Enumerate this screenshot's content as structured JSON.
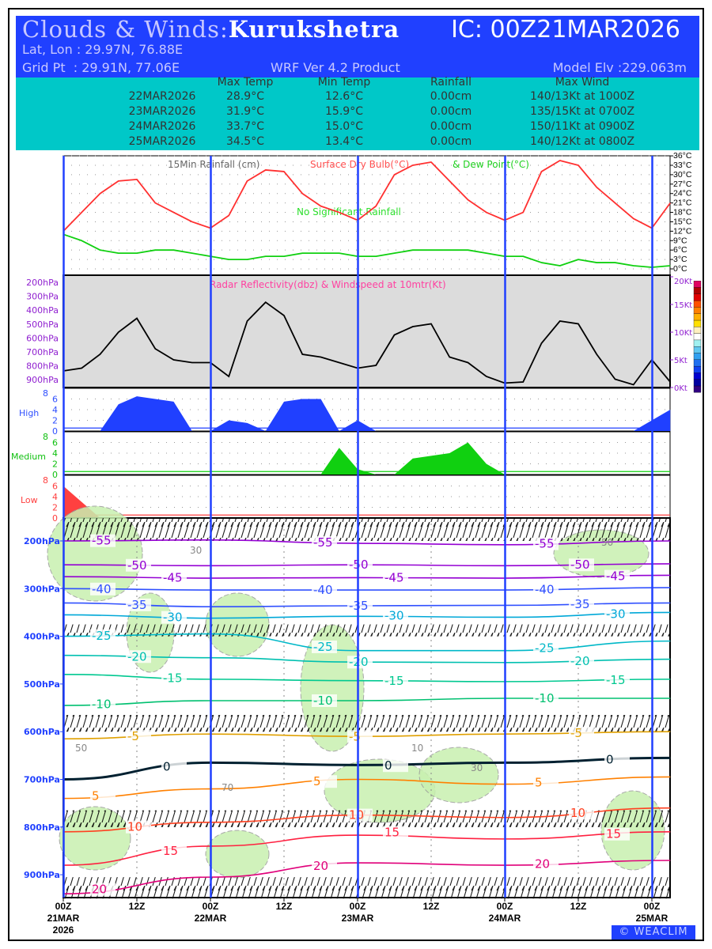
{
  "header": {
    "title_prefix": "Clouds & Winds:",
    "location": "Kurukshetra",
    "ic": "IC: 00Z21MAR2026",
    "latlon": "Lat, Lon : 29.97N, 76.88E",
    "gridpt": "Grid Pt  : 29.91N, 77.06E",
    "model": "WRF Ver 4.2 Product",
    "elev": "Model Elv :229.063m"
  },
  "table": {
    "headers": [
      "Max Temp",
      "Min Temp",
      "Rainfall",
      "Max Wind"
    ],
    "rows": [
      [
        "22MAR2026",
        "28.9°C",
        "12.6°C",
        "0.00cm",
        "140/13Kt at 1000Z"
      ],
      [
        "23MAR2026",
        "31.9°C",
        "15.9°C",
        "0.00cm",
        "135/15Kt at 0700Z"
      ],
      [
        "24MAR2026",
        "33.7°C",
        "15.0°C",
        "0.00cm",
        "150/11Kt at 0900Z"
      ],
      [
        "25MAR2026",
        "34.5°C",
        "13.4°C",
        "0.00cm",
        "140/12Kt at 0800Z"
      ]
    ]
  },
  "logo": "© WEACLIM",
  "chart_data": [
    {
      "type": "line",
      "name": "surface",
      "legend": [
        "15Min Rainfall (cm)",
        "Surface Dry Bulb(°C)",
        "& Dew Point(°C)"
      ],
      "annotation": "No Significant Rainfall",
      "x_hours": [
        0,
        3,
        6,
        9,
        12,
        15,
        18,
        21,
        24,
        27,
        30,
        33,
        36,
        39,
        42,
        45,
        48,
        51,
        54,
        57,
        60,
        63,
        66,
        69,
        72,
        75,
        78,
        81,
        84,
        87,
        90,
        93,
        96,
        99
      ],
      "series": [
        {
          "name": "Surface Dry Bulb",
          "color": "#ff3030",
          "values": [
            12,
            18,
            24,
            28,
            28.5,
            21,
            18,
            15,
            13,
            17,
            28,
            31.5,
            31,
            24,
            20,
            18,
            15.5,
            20,
            30,
            33,
            34,
            28,
            22,
            18,
            15.5,
            18,
            31,
            34.5,
            33,
            26,
            21,
            16,
            13,
            21
          ]
        },
        {
          "name": "Dew Point",
          "color": "#10d010",
          "values": [
            11,
            9,
            6,
            5,
            5,
            6,
            6,
            5,
            4,
            3,
            3,
            4,
            4,
            5,
            5,
            5,
            4,
            4,
            5,
            6,
            6,
            6,
            6,
            5,
            4,
            4,
            2,
            1,
            3,
            2,
            2,
            1,
            0.5,
            1
          ]
        }
      ],
      "yticks": [
        "0°C",
        "3°C",
        "6°C",
        "9°C",
        "12°C",
        "15°C",
        "18°C",
        "21°C",
        "24°C",
        "27°C",
        "30°C",
        "33°C",
        "36°C"
      ],
      "ylim": [
        0,
        36
      ]
    },
    {
      "type": "line",
      "name": "windspeed",
      "title": "Radar Reflectivity(dbz) & Windspeed at 10mtr(Kt)",
      "x_hours": [
        0,
        3,
        6,
        9,
        12,
        15,
        18,
        21,
        24,
        27,
        30,
        33,
        36,
        39,
        42,
        45,
        48,
        51,
        54,
        57,
        60,
        63,
        66,
        69,
        72,
        75,
        78,
        81,
        84,
        87,
        90,
        93,
        96,
        99
      ],
      "values": [
        3,
        3.5,
        6,
        10,
        12.5,
        7,
        5,
        4.5,
        4.5,
        2,
        12,
        15.4,
        13,
        6,
        5.5,
        4.5,
        3.5,
        4,
        9.5,
        11,
        11.5,
        5.5,
        4.5,
        2,
        0.8,
        1,
        8,
        12,
        11.5,
        6,
        1.5,
        0.5,
        5,
        1
      ],
      "yticks": [
        "0Kt",
        "5Kt",
        "10Kt",
        "15Kt",
        "20Kt"
      ],
      "ylim": [
        0,
        20
      ],
      "left_labels": [
        "200hPa",
        "300hPa",
        "400hPa",
        "500hPa",
        "600hPa",
        "700hPa",
        "800hPa",
        "900hPa"
      ],
      "colorbar": [
        "#300080",
        "#0000a0",
        "#0000d0",
        "#1040f0",
        "#2070f0",
        "#30a0f0",
        "#60c8f0",
        "#a0f0f0",
        "#ffffff",
        "#fff0c0",
        "#ffe000",
        "#ffb000",
        "#ff8000",
        "#ff5000",
        "#e00000",
        "#b00000",
        "#e00060"
      ]
    },
    {
      "type": "area",
      "name": "cloud-cover",
      "x_hours": [
        0,
        3,
        6,
        9,
        12,
        15,
        18,
        21,
        24,
        27,
        30,
        33,
        36,
        39,
        42,
        45,
        48,
        51,
        54,
        57,
        60,
        63,
        66,
        69,
        72,
        75,
        78,
        81,
        84,
        87,
        90,
        93,
        96,
        99
      ],
      "series": [
        {
          "name": "High",
          "color": "#2040ff",
          "values": [
            0,
            0,
            0,
            5,
            6.5,
            6,
            5.5,
            0,
            0,
            2,
            1.5,
            0,
            5.5,
            6,
            6,
            0,
            2,
            0,
            0,
            0,
            0,
            0,
            0,
            0,
            0,
            0,
            0,
            0,
            0,
            0,
            0,
            0,
            2,
            4
          ]
        },
        {
          "name": "Medium",
          "color": "#10d010",
          "values": [
            0,
            0,
            0,
            0,
            0,
            0,
            0,
            0,
            0,
            0,
            0,
            0,
            0,
            0,
            0,
            5,
            1,
            0,
            0,
            3,
            3.5,
            4,
            6,
            2,
            0,
            0,
            0,
            0,
            0,
            0,
            0,
            0,
            0,
            0
          ]
        },
        {
          "name": "Low",
          "color": "#ff4040",
          "values": [
            6,
            3,
            0,
            0,
            0,
            0,
            0,
            0,
            0,
            0,
            0,
            0,
            0,
            0,
            0,
            0,
            0,
            0,
            0,
            0,
            0,
            0,
            0,
            0,
            0,
            0,
            0,
            0,
            0,
            0,
            0,
            0,
            0,
            0
          ]
        }
      ],
      "yticks": [
        "0",
        "2",
        "4",
        "6",
        "8"
      ],
      "ylim": [
        0,
        8
      ]
    },
    {
      "type": "line",
      "name": "cross-section-isotherms",
      "x_hours": [
        0,
        24,
        48,
        72,
        99
      ],
      "yticks": [
        "200hPa",
        "300hPa",
        "400hPa",
        "500hPa",
        "600hPa",
        "700hPa",
        "800hPa",
        "900hPa"
      ],
      "ylim": [
        950,
        150
      ],
      "isotherms": [
        {
          "level": "-55",
          "color": "#9400d3",
          "p": [
            200,
            198,
            205,
            208,
            200
          ]
        },
        {
          "level": "-50",
          "color": "#9400d3",
          "p": [
            250,
            252,
            250,
            252,
            248
          ]
        },
        {
          "level": "-45",
          "color": "#9400d3",
          "p": [
            275,
            278,
            277,
            278,
            272
          ]
        },
        {
          "level": "-40",
          "color": "#3050ff",
          "p": [
            300,
            303,
            303,
            303,
            298
          ]
        },
        {
          "level": "-35",
          "color": "#3050ff",
          "p": [
            330,
            338,
            336,
            335,
            330
          ]
        },
        {
          "level": "-30",
          "color": "#00a8d8",
          "p": [
            355,
            362,
            358,
            360,
            350
          ]
        },
        {
          "level": "-25",
          "color": "#00b8c8",
          "p": [
            400,
            395,
            430,
            430,
            410
          ]
        },
        {
          "level": "-20",
          "color": "#00c0b0",
          "p": [
            440,
            445,
            454,
            455,
            448
          ]
        },
        {
          "level": "-15",
          "color": "#00c890",
          "p": [
            480,
            490,
            493,
            495,
            490
          ]
        },
        {
          "level": "-10",
          "color": "#00c070",
          "p": [
            545,
            535,
            535,
            530,
            530
          ]
        },
        {
          "level": "-5",
          "color": "#e0a000",
          "p": [
            615,
            605,
            610,
            605,
            600
          ]
        },
        {
          "level": "0",
          "color": "#002030",
          "p": [
            700,
            665,
            670,
            665,
            655
          ]
        },
        {
          "level": "5",
          "color": "#ff8000",
          "p": [
            740,
            720,
            700,
            710,
            695
          ]
        },
        {
          "level": "10",
          "color": "#ff4020",
          "p": [
            810,
            790,
            775,
            780,
            760
          ]
        },
        {
          "level": "15",
          "color": "#ff2040",
          "p": [
            880,
            840,
            817,
            825,
            810
          ]
        },
        {
          "level": "20",
          "color": "#e0007a",
          "p": [
            940,
            905,
            875,
            880,
            870
          ]
        }
      ],
      "rh_labels": [
        "30",
        "50",
        "70",
        "10"
      ]
    }
  ],
  "xaxis": {
    "labels": [
      [
        "00Z",
        "21MAR",
        "2026"
      ],
      [
        "12Z"
      ],
      [
        "00Z",
        "22MAR"
      ],
      [
        "12Z"
      ],
      [
        "00Z",
        "23MAR"
      ],
      [
        "12Z"
      ],
      [
        "00Z",
        "24MAR"
      ],
      [
        "12Z"
      ],
      [
        "00Z",
        "25MAR"
      ]
    ]
  }
}
